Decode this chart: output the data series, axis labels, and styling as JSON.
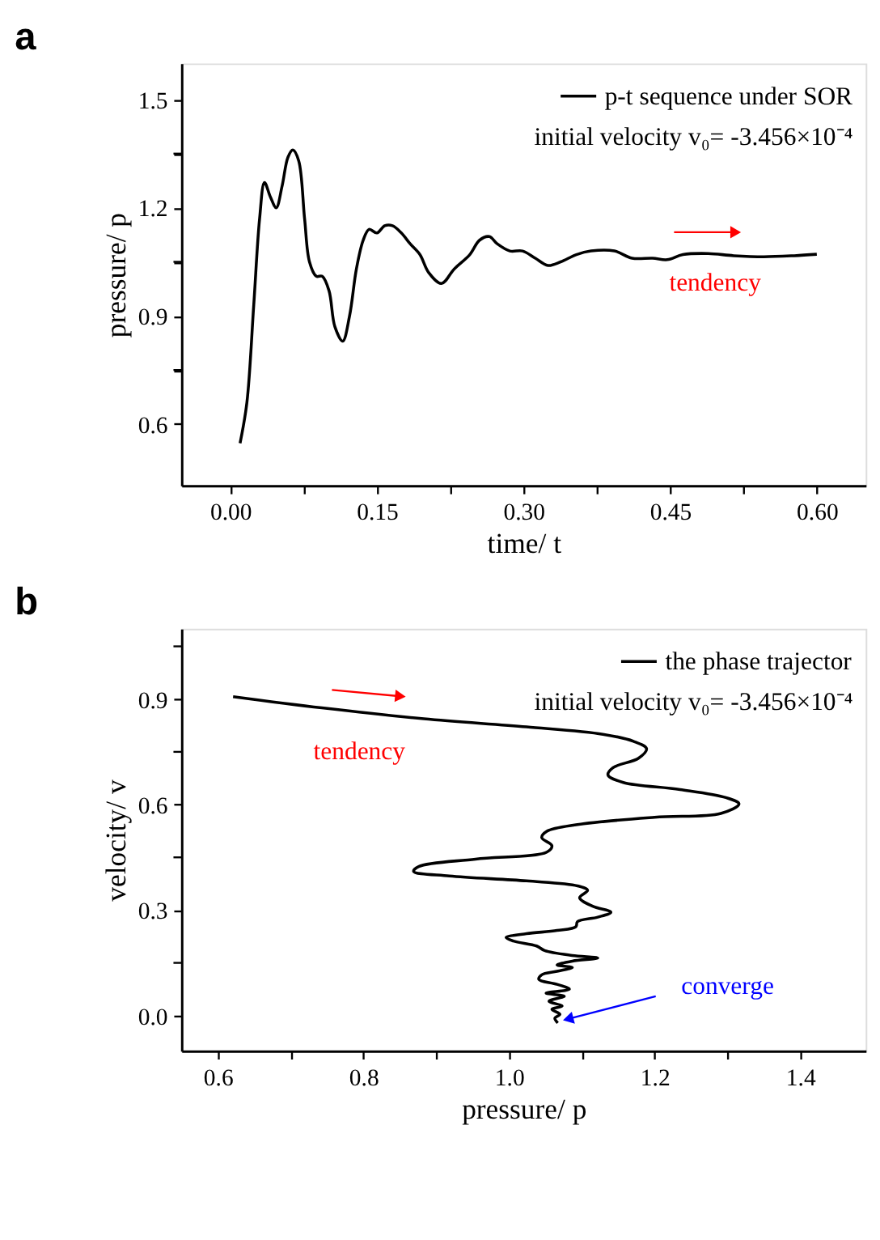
{
  "chart_data": [
    {
      "type": "line",
      "title": "a",
      "xlabel": "time/ t",
      "ylabel": "pressure/ p",
      "xlim": [
        -0.05,
        0.65
      ],
      "ylim": [
        0.43,
        1.6
      ],
      "xticks": [
        {
          "value": 0,
          "label": "0.00"
        },
        {
          "value": 0.075,
          "label": null
        },
        0.15,
        {
          "value": 0.225,
          "label": null
        },
        {
          "value": 0.3,
          "label": "0.30"
        },
        {
          "value": 0.375,
          "label": null
        },
        0.45,
        {
          "value": 0.525,
          "label": null
        },
        {
          "value": 0.6,
          "label": "0.60"
        }
      ],
      "yticks": [
        0.6,
        {
          "value": 0.75,
          "label": null
        },
        0.9,
        {
          "value": 1.05,
          "label": null
        },
        1.2,
        {
          "value": 1.35,
          "label": null
        },
        1.5
      ],
      "grid": false,
      "legend": "top right",
      "marker": "none",
      "line_style": "solid",
      "annotations": [
        "initial velocity v₀= -3.456×10⁻⁴",
        "tendency"
      ],
      "series": [
        {
          "name": "p-t sequence under SOR",
          "color": "#000000",
          "x": [
            0.01,
            0.017,
            0.024,
            0.03,
            0.035,
            0.041,
            0.047,
            0.053,
            0.059,
            0.064,
            0.07,
            0.076,
            0.081,
            0.088,
            0.094,
            0.101,
            0.107,
            0.115,
            0.122,
            0.129,
            0.136,
            0.142,
            0.15,
            0.158,
            0.166,
            0.175,
            0.184,
            0.194,
            0.203,
            0.216,
            0.229,
            0.245,
            0.255,
            0.265,
            0.273,
            0.286,
            0.299,
            0.312,
            0.325,
            0.338,
            0.354,
            0.369,
            0.393,
            0.411,
            0.432,
            0.447,
            0.463,
            0.489,
            0.515,
            0.546,
            0.577,
            0.6
          ],
          "values": [
            0.547,
            0.66,
            0.93,
            1.17,
            1.27,
            1.23,
            1.2,
            1.26,
            1.34,
            1.36,
            1.33,
            1.17,
            1.05,
            1.01,
            1.01,
            0.97,
            0.87,
            0.83,
            0.9,
            1.03,
            1.11,
            1.14,
            1.13,
            1.15,
            1.15,
            1.13,
            1.1,
            1.07,
            1.02,
            0.99,
            1.03,
            1.07,
            1.11,
            1.12,
            1.1,
            1.08,
            1.08,
            1.06,
            1.04,
            1.05,
            1.07,
            1.08,
            1.08,
            1.06,
            1.06,
            1.056,
            1.07,
            1.073,
            1.067,
            1.064,
            1.067,
            1.071
          ]
        }
      ]
    },
    {
      "type": "line",
      "title": "b",
      "xlabel": "pressure/ p",
      "ylabel": "velocity/ v",
      "xlim": [
        0.55,
        1.49
      ],
      "ylim": [
        -0.1,
        1.1
      ],
      "xticks": [
        0.6,
        {
          "value": 0.7,
          "label": null
        },
        0.8,
        {
          "value": 0.9,
          "label": null
        },
        {
          "value": 1.0,
          "label": "1.0"
        },
        {
          "value": 1.1,
          "label": null
        },
        1.2,
        {
          "value": 1.3,
          "label": null
        },
        1.4
      ],
      "yticks": [
        {
          "value": 0.0,
          "label": "0.0"
        },
        {
          "value": 0.15,
          "label": null
        },
        0.3,
        {
          "value": 0.45,
          "label": null
        },
        0.6,
        {
          "value": 0.75,
          "label": null
        },
        0.9,
        {
          "value": 1.05,
          "label": null
        }
      ],
      "grid": false,
      "legend": "top right",
      "marker": "none",
      "line_style": "solid",
      "annotations": [
        "initial velocity v₀= -3.456×10⁻⁴",
        "tendency",
        {
          "text": "converge",
          "x": 1.07,
          "y": 0.0
        }
      ],
      "series": [
        {
          "name": "the phase trajector",
          "color": "#000000",
          "x": [
            0.621,
            0.743,
            0.883,
            1.024,
            1.129,
            1.171,
            1.189,
            1.178,
            1.143,
            1.136,
            1.157,
            1.235,
            1.298,
            1.316,
            1.291,
            1.2,
            1.094,
            1.052,
            1.045,
            1.059,
            1.052,
            0.954,
            0.876,
            0.869,
            0.918,
            1.024,
            1.094,
            1.108,
            1.097,
            1.115,
            1.14,
            1.122,
            1.094,
            1.092,
            1.066,
            1.024,
            0.996,
            1.006,
            1.038,
            1.049,
            1.087,
            1.122,
            1.087,
            1.066,
            1.087,
            1.066,
            1.045,
            1.041,
            1.066,
            1.083,
            1.051,
            1.076,
            1.055,
            1.073,
            1.059,
            1.07,
            1.063,
            1.067
          ],
          "values": [
            0.907,
            0.875,
            0.844,
            0.821,
            0.8,
            0.78,
            0.759,
            0.732,
            0.705,
            0.684,
            0.663,
            0.643,
            0.62,
            0.602,
            0.575,
            0.564,
            0.543,
            0.524,
            0.506,
            0.483,
            0.465,
            0.445,
            0.424,
            0.41,
            0.397,
            0.383,
            0.369,
            0.356,
            0.335,
            0.311,
            0.294,
            0.28,
            0.267,
            0.253,
            0.242,
            0.233,
            0.222,
            0.212,
            0.198,
            0.185,
            0.171,
            0.164,
            0.155,
            0.144,
            0.137,
            0.126,
            0.116,
            0.103,
            0.089,
            0.075,
            0.064,
            0.055,
            0.041,
            0.027,
            0.018,
            0.004,
            -0.007,
            -0.021
          ]
        }
      ]
    }
  ]
}
